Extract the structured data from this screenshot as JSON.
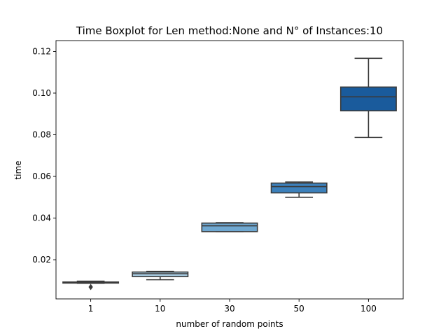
{
  "chart_data": {
    "type": "boxplot",
    "title": "Time Boxplot for Len method:None and N° of Instances:10",
    "xlabel": "number of random points",
    "ylabel": "time",
    "categories": [
      "1",
      "10",
      "30",
      "50",
      "100"
    ],
    "ylim": [
      0.0012,
      0.1252
    ],
    "yticks": [
      0.02,
      0.04,
      0.06,
      0.08,
      0.1,
      0.12
    ],
    "ytick_labels": [
      "0.02",
      "0.04",
      "0.06",
      "0.08",
      "0.10",
      "0.12"
    ],
    "grid": false,
    "boxes": [
      {
        "category": "1",
        "whisker_low": 0.0087,
        "q1": 0.0088,
        "median": 0.0091,
        "q3": 0.0093,
        "whisker_high": 0.0097,
        "fliers": [
          0.0069
        ],
        "color": "#d6e6f4"
      },
      {
        "category": "10",
        "whisker_low": 0.0104,
        "q1": 0.0119,
        "median": 0.0133,
        "q3": 0.0141,
        "whisker_high": 0.0144,
        "fliers": [],
        "color": "#a8cde3"
      },
      {
        "category": "30",
        "whisker_low": 0.0335,
        "q1": 0.0335,
        "median": 0.0363,
        "q3": 0.0376,
        "whisker_high": 0.0378,
        "fliers": [],
        "color": "#6fa8d1"
      },
      {
        "category": "50",
        "whisker_low": 0.05,
        "q1": 0.0521,
        "median": 0.0551,
        "q3": 0.0568,
        "whisker_high": 0.0573,
        "fliers": [],
        "color": "#3c80bb"
      },
      {
        "category": "100",
        "whisker_low": 0.0787,
        "q1": 0.0915,
        "median": 0.0982,
        "q3": 0.1029,
        "whisker_high": 0.1167,
        "fliers": [],
        "color": "#1a5b9c"
      }
    ]
  }
}
